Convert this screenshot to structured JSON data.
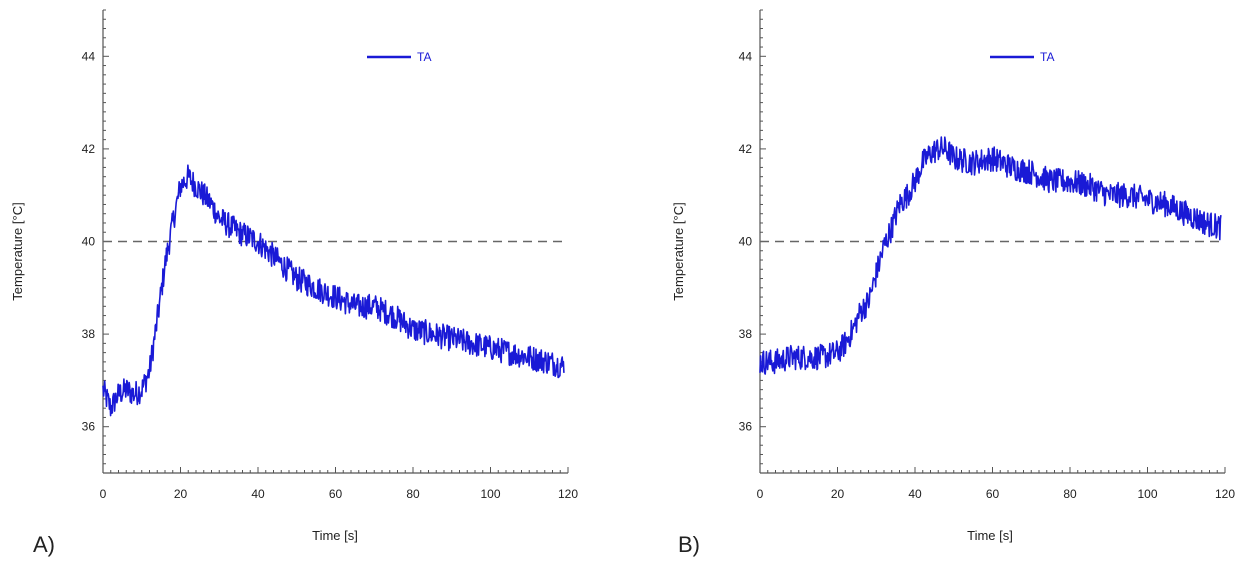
{
  "chart_data": [
    {
      "type": "line",
      "panel_label": "A)",
      "xlabel": "Time [s]",
      "ylabel": "Temperature [°C]",
      "xlim": [
        0,
        120
      ],
      "ylim": [
        35,
        45
      ],
      "xticks": [
        0,
        20,
        40,
        60,
        80,
        100,
        120
      ],
      "yticks": [
        36,
        38,
        40,
        42,
        44
      ],
      "threshold": 40,
      "grid": false,
      "legend_position": "top-center",
      "series": [
        {
          "name": "TA",
          "color": "#1a1ad6",
          "x": [
            0,
            2,
            4,
            6,
            8,
            10,
            12,
            14,
            16,
            18,
            20,
            22,
            24,
            26,
            28,
            30,
            35,
            40,
            45,
            50,
            55,
            60,
            65,
            70,
            75,
            80,
            85,
            90,
            95,
            100,
            105,
            110,
            115,
            119
          ],
          "y": [
            36.8,
            36.4,
            36.7,
            36.8,
            36.7,
            36.8,
            37.2,
            38.3,
            39.5,
            40.4,
            41.2,
            41.4,
            41.2,
            41.0,
            40.8,
            40.5,
            40.2,
            40.0,
            39.6,
            39.2,
            39.0,
            38.8,
            38.6,
            38.6,
            38.4,
            38.1,
            38.0,
            37.9,
            37.8,
            37.7,
            37.6,
            37.5,
            37.4,
            37.3
          ]
        }
      ]
    },
    {
      "type": "line",
      "panel_label": "B)",
      "xlabel": "Time [s]",
      "ylabel": "Temperature [°C]",
      "xlim": [
        0,
        120
      ],
      "ylim": [
        35,
        45
      ],
      "xticks": [
        0,
        20,
        40,
        60,
        80,
        100,
        120
      ],
      "yticks": [
        36,
        38,
        40,
        42,
        44
      ],
      "threshold": 40,
      "grid": false,
      "legend_position": "top-center",
      "series": [
        {
          "name": "TA",
          "color": "#1a1ad6",
          "x": [
            0,
            4,
            8,
            12,
            16,
            20,
            22,
            24,
            26,
            28,
            30,
            32,
            34,
            36,
            38,
            40,
            42,
            44,
            46,
            48,
            50,
            55,
            60,
            65,
            70,
            75,
            80,
            85,
            90,
            95,
            100,
            105,
            110,
            115,
            119
          ],
          "y": [
            37.4,
            37.4,
            37.5,
            37.5,
            37.5,
            37.6,
            37.8,
            38.1,
            38.5,
            38.7,
            39.3,
            39.9,
            40.3,
            40.8,
            41.0,
            41.3,
            41.7,
            41.9,
            42.0,
            42.0,
            41.8,
            41.7,
            41.8,
            41.6,
            41.5,
            41.3,
            41.3,
            41.2,
            41.0,
            41.0,
            40.9,
            40.8,
            40.6,
            40.4,
            40.3
          ]
        }
      ]
    }
  ]
}
